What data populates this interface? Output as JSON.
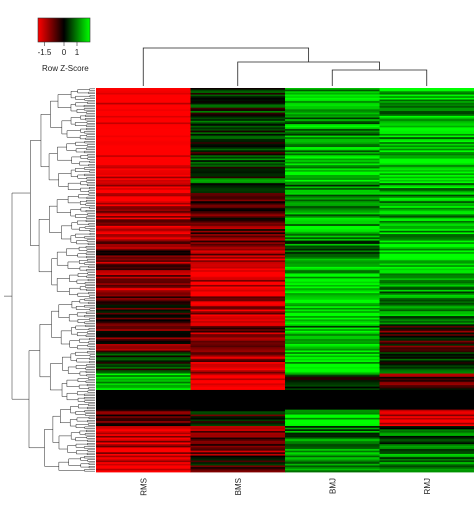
{
  "chart_data": {
    "type": "heatmap",
    "title": "",
    "color_key": {
      "title": "Row Z-Score",
      "ticks": [
        "-1.5",
        "0",
        "1"
      ],
      "tick_values": [
        -1.5,
        0,
        1
      ],
      "range": [
        -2,
        2
      ],
      "low_color": "#ff0000",
      "mid_color": "#000000",
      "high_color": "#00ff00"
    },
    "columns": [
      "RMS",
      "BMS",
      "BMJ",
      "RMJ"
    ],
    "column_dendrogram": "RMS | (BMS | (BMJ , RMJ))",
    "row_dendrogram": true,
    "bands": [
      {
        "rows": 40,
        "z": [
          -1.8,
          0.2,
          1.0,
          1.1
        ]
      },
      {
        "rows": 18,
        "z": [
          -1.6,
          0.4,
          1.2,
          1.3
        ]
      },
      {
        "rows": 14,
        "z": [
          -1.4,
          -0.2,
          0.9,
          1.0
        ]
      },
      {
        "rows": 20,
        "z": [
          -1.2,
          -0.6,
          1.1,
          1.2
        ]
      },
      {
        "rows": 12,
        "z": [
          -0.6,
          -0.8,
          0.8,
          1.4
        ]
      },
      {
        "rows": 22,
        "z": [
          -0.9,
          -1.3,
          1.2,
          1.0
        ]
      },
      {
        "rows": 18,
        "z": [
          -0.3,
          -1.1,
          1.4,
          0.7
        ]
      },
      {
        "rows": 16,
        "z": [
          -0.6,
          -0.9,
          1.0,
          -0.3
        ]
      },
      {
        "rows": 14,
        "z": [
          0.1,
          -1.0,
          1.3,
          0.3
        ]
      },
      {
        "rows": 10,
        "z": [
          1.4,
          -1.6,
          0.3,
          -0.5
        ]
      },
      {
        "rows": 12,
        "z": [
          0.0,
          0.0,
          0.0,
          0.0
        ]
      },
      {
        "rows": 10,
        "z": [
          -0.3,
          -0.1,
          1.5,
          -1.2
        ]
      },
      {
        "rows": 18,
        "z": [
          -1.3,
          -0.7,
          0.8,
          0.7
        ]
      },
      {
        "rows": 10,
        "z": [
          -1.5,
          -0.2,
          1.0,
          0.9
        ]
      }
    ]
  }
}
